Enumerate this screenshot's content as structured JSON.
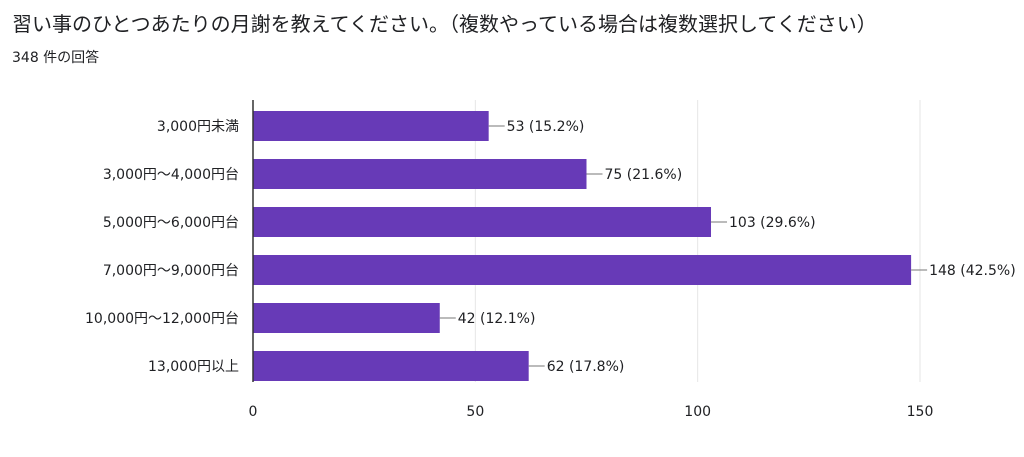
{
  "header": {
    "title": "習い事のひとつあたりの月謝を教えてください。（複数やっている場合は複数選択してください）",
    "response_count": "348 件の回答"
  },
  "colors": {
    "bar": "#673ab7",
    "gridline": "#e6e6e6",
    "axis": "#333333",
    "leader": "#777777"
  },
  "chart_data": {
    "type": "bar",
    "orientation": "horizontal",
    "title": "習い事のひとつあたりの月謝を教えてください。（複数やっている場合は複数選択してください）",
    "subtitle": "348 件の回答",
    "categories": [
      "3,000円未満",
      "3,000円〜4,000円台",
      "5,000円〜6,000円台",
      "7,000円〜9,000円台",
      "10,000円〜12,000円台",
      "13,000円以上"
    ],
    "values": [
      53,
      75,
      103,
      148,
      42,
      62
    ],
    "data_labels": [
      "53 (15.2%)",
      "75 (21.6%)",
      "103 (29.6%)",
      "148 (42.5%)",
      "42 (12.1%)",
      "62 (17.8%)"
    ],
    "xlim": [
      0,
      150
    ],
    "xticks": [
      0,
      50,
      100,
      150
    ],
    "grid": true,
    "legend": "none"
  }
}
